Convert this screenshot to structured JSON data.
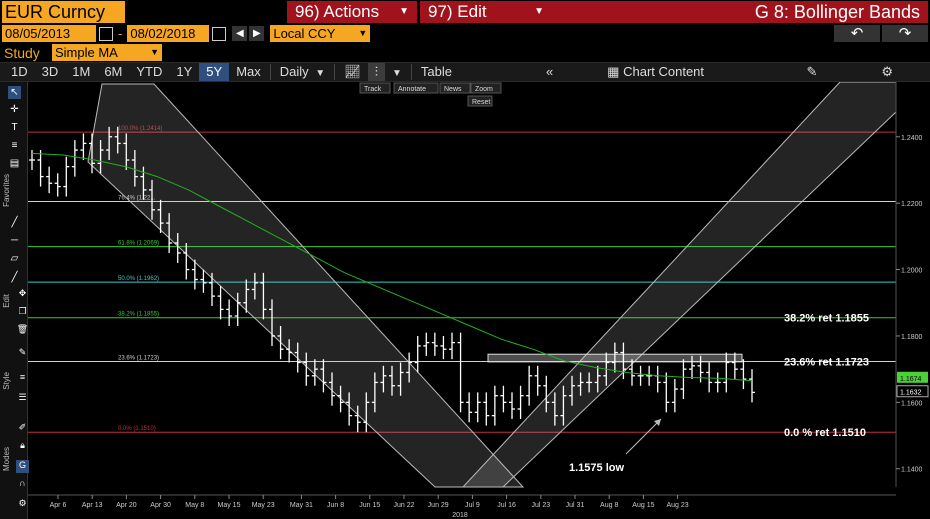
{
  "header": {
    "security": "EUR Curncy",
    "actions_label": "96) Actions",
    "edit_label": "97) Edit",
    "function_title": "G 8: Bollinger Bands",
    "start_date": "08/05/2013",
    "end_date": "08/02/2018",
    "date_dash": "-",
    "currency": "Local CCY",
    "study_label": "Study",
    "study_value": "Simple MA"
  },
  "toolbar": {
    "periods": [
      "1D",
      "3D",
      "1M",
      "6M",
      "YTD",
      "1Y",
      "5Y",
      "Max"
    ],
    "active_period": "5Y",
    "frequency": "Daily",
    "table_label": "Table",
    "chart_content_label": "Chart Content"
  },
  "chart_tools": {
    "track": "Track",
    "annotate": "Annotate",
    "news": "News",
    "zoom": "Zoom",
    "reset": "Reset"
  },
  "sidebar": {
    "favorites": "Favorites",
    "edit": "Edit",
    "style": "Style",
    "modes": "Modes"
  },
  "chart_data": {
    "type": "line",
    "subtype": "ohlc-bars-with-moving-average",
    "x_ticks": [
      "Apr 6",
      "Apr 13",
      "Apr 20",
      "Apr 30",
      "May 8",
      "May 15",
      "May 23",
      "May 31",
      "Jun 8",
      "Jun 15",
      "Jun 22",
      "Jun 29",
      "Jul 9",
      "Jul 16",
      "Jul 23",
      "Jul 31",
      "Aug 8",
      "Aug 15",
      "Aug 23"
    ],
    "x_year_label": "2018",
    "y_ticks": [
      1.24,
      1.22,
      1.2,
      1.18,
      1.16,
      1.14
    ],
    "y_tick_labels": [
      "1.2400",
      "1.2200",
      "1.2000",
      "1.1800",
      "1.1600",
      "1.1400"
    ],
    "ylim": [
      1.1345,
      1.2565
    ],
    "last_price": {
      "value": 1.1674,
      "label": "1.1674",
      "color": "#4cd137"
    },
    "last_close": {
      "value": 1.1632,
      "label": "1.1632"
    },
    "price_series": [
      1.233,
      1.228,
      1.226,
      1.225,
      1.231,
      1.236,
      1.238,
      1.232,
      1.236,
      1.24,
      1.238,
      1.233,
      1.228,
      1.224,
      1.218,
      1.214,
      1.208,
      1.205,
      1.2,
      1.197,
      1.196,
      1.192,
      1.188,
      1.186,
      1.19,
      1.194,
      1.196,
      1.188,
      1.18,
      1.176,
      1.175,
      1.172,
      1.168,
      1.17,
      1.166,
      1.162,
      1.16,
      1.156,
      1.154,
      1.16,
      1.166,
      1.168,
      1.165,
      1.169,
      1.172,
      1.177,
      1.178,
      1.177,
      1.176,
      1.178,
      1.16,
      1.157,
      1.16,
      1.156,
      1.162,
      1.16,
      1.158,
      1.162,
      1.168,
      1.165,
      1.16,
      1.156,
      1.162,
      1.165,
      1.166,
      1.166,
      1.168,
      1.172,
      1.175,
      1.17,
      1.168,
      1.168,
      1.168,
      1.166,
      1.16,
      1.164,
      1.17,
      1.171,
      1.169,
      1.166,
      1.166,
      1.172,
      1.17,
      1.167,
      1.163
    ],
    "ma_series": [
      1.235,
      1.2345,
      1.233,
      1.231,
      1.228,
      1.224,
      1.219,
      1.214,
      1.209,
      1.204,
      1.199,
      1.195,
      1.191,
      1.187,
      1.183,
      1.179,
      1.176,
      1.1725,
      1.1705,
      1.169,
      1.168,
      1.1675,
      1.1672,
      1.1665
    ],
    "fib_levels": [
      {
        "label": "100.0% (1.2414)",
        "value": 1.2414,
        "color": "#c0303a"
      },
      {
        "label": "76.4% (1.22...",
        "value": 1.2205,
        "color": "#cfcfcf"
      },
      {
        "label": "61.8% (1.2069)",
        "value": 1.2069,
        "color": "#33cc33"
      },
      {
        "label": "50.0% (1.1962)",
        "value": 1.1962,
        "color": "#33cccc"
      },
      {
        "label": "38.2% (1.1855)",
        "value": 1.1855,
        "color": "#33cc33"
      },
      {
        "label": "23.6% (1.1723)",
        "value": 1.1723,
        "color": "#cfcfcf"
      },
      {
        "label": "0.0% (1.1510)",
        "value": 1.151,
        "color": "#c0303a"
      }
    ],
    "annotations": {
      "ret_382": "38.2% ret 1.1855",
      "ret_236": "23.6% ret 1.1723",
      "ret_0": "0.0 % ret 1.1510",
      "low": "1.1575 low"
    }
  }
}
